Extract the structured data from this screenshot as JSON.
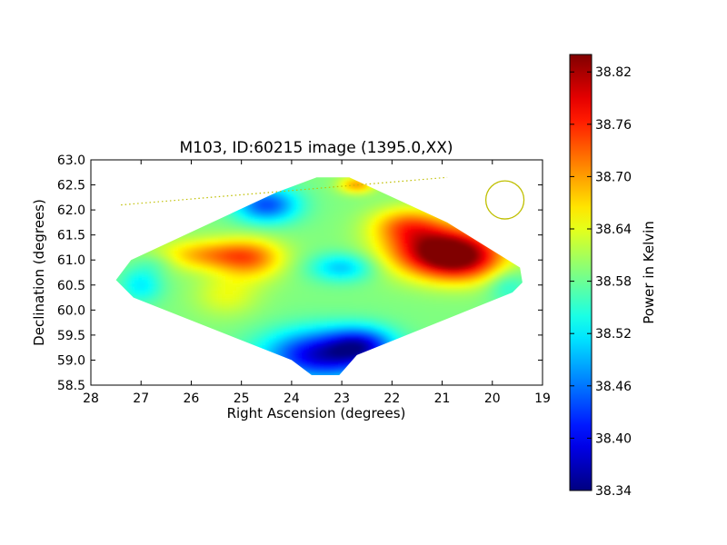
{
  "chart_data": {
    "type": "heatmap",
    "title": "M103, ID:60215 image (1395.0,XX)",
    "xlabel": "Right Ascension (degrees)",
    "ylabel": "Declination (degrees)",
    "xlim": [
      28,
      19
    ],
    "ylim": [
      58.5,
      63.0
    ],
    "x_ticks": [
      28,
      27,
      26,
      25,
      24,
      23,
      22,
      21,
      20,
      19
    ],
    "x_tick_labels": [
      "28",
      "27",
      "26",
      "25",
      "24",
      "23",
      "22",
      "21",
      "20",
      "19"
    ],
    "y_ticks": [
      63.0,
      62.5,
      62.0,
      61.5,
      61.0,
      60.5,
      60.0,
      59.5,
      59.0,
      58.5
    ],
    "y_tick_labels": [
      "63.0",
      "62.5",
      "62.0",
      "61.5",
      "61.0",
      "60.5",
      "60.0",
      "59.5",
      "59.0",
      "58.5"
    ],
    "colorbar": {
      "label": "Power in Kelvin",
      "range": [
        38.34,
        38.84
      ],
      "ticks": [
        38.82,
        38.76,
        38.7,
        38.64,
        38.58,
        38.52,
        38.46,
        38.4,
        38.34
      ],
      "tick_labels": [
        "38.82",
        "38.76",
        "38.70",
        "38.64",
        "38.58",
        "38.52",
        "38.46",
        "38.40",
        "38.34"
      ],
      "colormap": "jet"
    },
    "coverage_outline": [
      [
        23.5,
        62.65
      ],
      [
        22.85,
        62.65
      ],
      [
        20.9,
        61.75
      ],
      [
        19.45,
        60.85
      ],
      [
        19.4,
        60.55
      ],
      [
        19.6,
        60.35
      ],
      [
        22.7,
        59.1
      ],
      [
        23.05,
        58.7
      ],
      [
        23.6,
        58.7
      ],
      [
        24.0,
        59.0
      ],
      [
        27.15,
        60.25
      ],
      [
        27.5,
        60.6
      ],
      [
        27.2,
        61.0
      ],
      [
        24.3,
        62.35
      ]
    ],
    "background_level": 38.59,
    "features": [
      {
        "ra": 21.0,
        "dec": 61.2,
        "peak": 38.83,
        "sigma_ra": 0.75,
        "sigma_dec": 0.35
      },
      {
        "ra": 20.6,
        "dec": 60.95,
        "peak": 38.7,
        "sigma_ra": 0.6,
        "sigma_dec": 0.3
      },
      {
        "ra": 21.7,
        "dec": 61.7,
        "peak": 38.7,
        "sigma_ra": 0.5,
        "sigma_dec": 0.25
      },
      {
        "ra": 25.6,
        "dec": 61.1,
        "peak": 38.7,
        "sigma_ra": 0.75,
        "sigma_dec": 0.22
      },
      {
        "ra": 24.8,
        "dec": 61.0,
        "peak": 38.68,
        "sigma_ra": 0.45,
        "sigma_dec": 0.3
      },
      {
        "ra": 25.3,
        "dec": 60.3,
        "peak": 38.64,
        "sigma_ra": 0.45,
        "sigma_dec": 0.3
      },
      {
        "ra": 22.7,
        "dec": 62.5,
        "peak": 38.7,
        "sigma_ra": 0.25,
        "sigma_dec": 0.12
      },
      {
        "ra": 23.4,
        "dec": 59.1,
        "peak": 38.38,
        "sigma_ra": 0.8,
        "sigma_dec": 0.35
      },
      {
        "ra": 22.6,
        "dec": 59.3,
        "peak": 38.46,
        "sigma_ra": 0.45,
        "sigma_dec": 0.25
      },
      {
        "ra": 24.5,
        "dec": 62.1,
        "peak": 38.44,
        "sigma_ra": 0.45,
        "sigma_dec": 0.25
      },
      {
        "ra": 23.0,
        "dec": 60.85,
        "peak": 38.5,
        "sigma_ra": 0.45,
        "sigma_dec": 0.2
      },
      {
        "ra": 27.0,
        "dec": 60.5,
        "peak": 38.52,
        "sigma_ra": 0.3,
        "sigma_dec": 0.25
      },
      {
        "ra": 19.7,
        "dec": 60.5,
        "peak": 38.54,
        "sigma_ra": 0.3,
        "sigma_dec": 0.25
      },
      {
        "ra": 26.7,
        "dec": 60.95,
        "peak": 38.56,
        "sigma_ra": 0.3,
        "sigma_dec": 0.15
      }
    ],
    "beam_circle": {
      "ra": 19.75,
      "dec": 62.2,
      "radius_deg": 0.38,
      "color": "#bfbf00"
    },
    "dotted_line": {
      "points": [
        [
          27.4,
          62.1
        ],
        [
          20.9,
          62.65
        ]
      ],
      "color": "#bfbf00"
    }
  }
}
